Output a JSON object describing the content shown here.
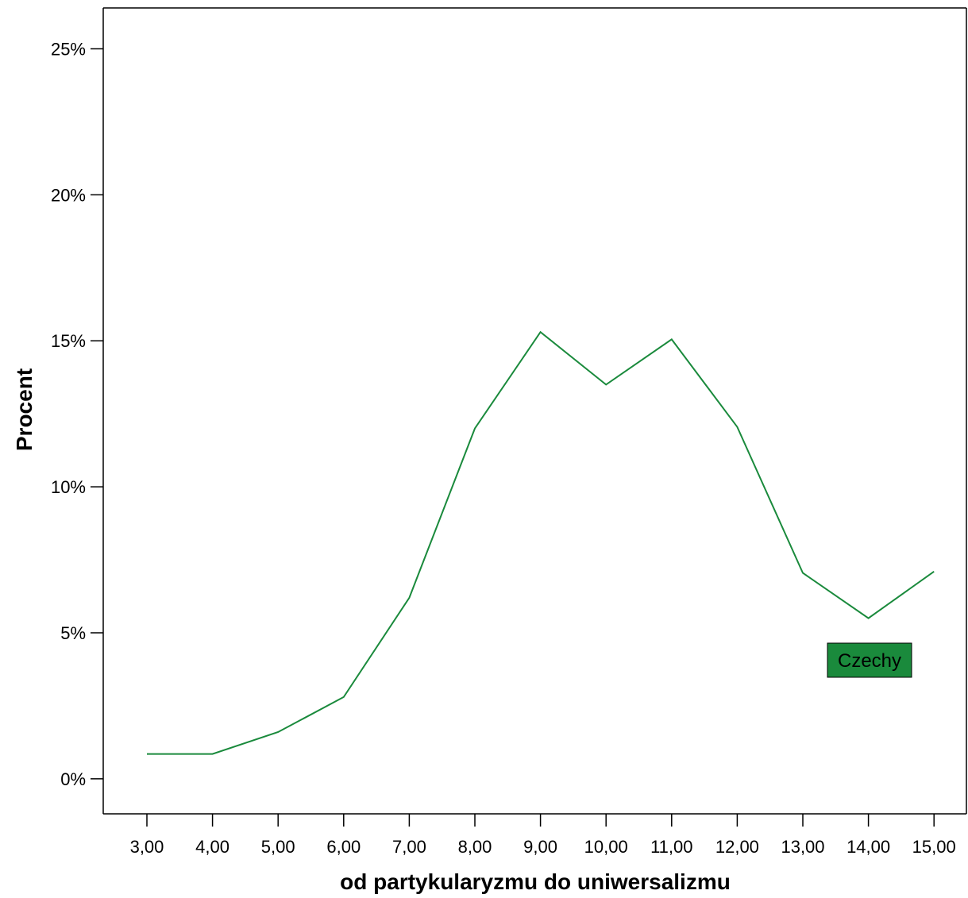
{
  "chart_data": {
    "type": "line",
    "xlabel": "od partykularyzmu do uniwersalizmu",
    "ylabel": "Procent",
    "categories": [
      "3,00",
      "4,00",
      "5,00",
      "6,00",
      "7,00",
      "8,00",
      "9,00",
      "10,00",
      "11,00",
      "12,00",
      "13,00",
      "14,00",
      "15,00"
    ],
    "y_ticks": [
      "0%",
      "5%",
      "10%",
      "15%",
      "20%",
      "25%"
    ],
    "y_tick_values": [
      0,
      5,
      10,
      15,
      20,
      25
    ],
    "ylim": [
      -1.2,
      26.4
    ],
    "grid": false,
    "legend_position": "bottom-right",
    "series": [
      {
        "name": "Czechy",
        "color": "#1a8a3c",
        "values": [
          0.85,
          0.85,
          1.6,
          2.8,
          6.2,
          12.0,
          15.3,
          13.5,
          15.05,
          12.05,
          7.05,
          5.5,
          7.1
        ]
      }
    ]
  }
}
